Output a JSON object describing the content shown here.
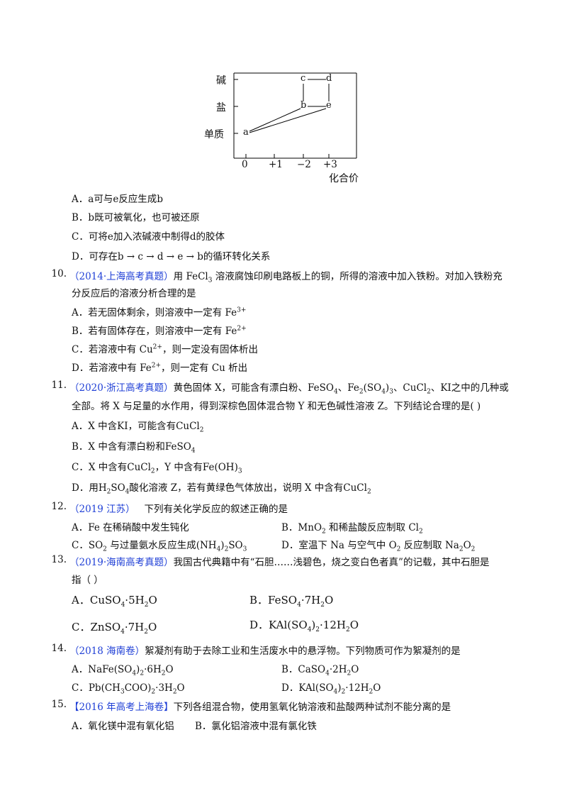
{
  "diagram": {
    "y_labels": [
      "碱",
      "盐",
      "单质"
    ],
    "x_ticks": [
      "0",
      "+1",
      "−2",
      "+3"
    ],
    "x_axis_title": "化合价",
    "nodes": [
      "c",
      "d",
      "b",
      "e",
      "a"
    ]
  },
  "q9": {
    "A": {
      "letter": "A．",
      "t1": "a",
      "t2": "可与",
      "t3": "e",
      "t4": "反应生成",
      "t5": "b"
    },
    "B": {
      "letter": "B．",
      "t1": "b",
      "t2": "既可被氧化，也可被还原"
    },
    "C": {
      "letter": "C．",
      "t1": "可将",
      "t2": "e",
      "t3": "加入浓碱液中制得",
      "t4": "d",
      "t5": "的胶体"
    },
    "D": {
      "letter": "D．",
      "t1": "可存在",
      "t2": "b → c → d → e → b",
      "t3": "的循环转化关系"
    }
  },
  "q10": {
    "num": "10.",
    "source": "（2014·上海高考真题）",
    "stem1": "用 FeCl",
    "stem1_sub": "3",
    "stem1_rest": " 溶液腐蚀印刷电路板上的铜，所得的溶液中加入铁粉。对加入铁粉充",
    "stem2": "分反应后的溶液分析合理的是",
    "A": {
      "letter": "A．",
      "text": "若无固体剩余，则溶液中一定有 Fe",
      "sup": "3+"
    },
    "B": {
      "letter": "B．",
      "text": "若有固体存在，则溶液中一定有 Fe",
      "sup": "2+"
    },
    "C": {
      "letter": "C．",
      "text": "若溶液中有 Cu",
      "sup": "2+",
      "rest": "，则一定没有固体析出"
    },
    "D": {
      "letter": "D．",
      "text": "若溶液中有 Fe",
      "sup": "2+",
      "rest": "，则一定有 Cu 析出"
    }
  },
  "q11": {
    "num": "11.",
    "source": "（2020·浙江高考真题）",
    "stem1": "黄色固体 X，可能含有漂白粉、FeSO",
    "stem1b": "、Fe",
    "stem1c": "(SO",
    "stem1d": ")",
    "stem1e": "、CuCl",
    "stem1f": "、KI之中的几种或",
    "stem2": "全部。将 X 与足量的水作用，得到深棕色固体混合物 Y 和无色碱性溶液 Z。下列结论合理的是(      )",
    "A": {
      "letter": "A．",
      "text": "X 中含KI，可能含有CuCl",
      "sub": "2"
    },
    "B": {
      "letter": "B．",
      "text": "X 中含有漂白粉和FeSO",
      "sub": "4"
    },
    "C": {
      "letter": "C．",
      "text": "X 中含有CuCl",
      "sub": "2",
      "rest": "，Y 中含有Fe(OH)",
      "sub2": "3"
    },
    "D": {
      "letter": "D．",
      "pre": "用H",
      "sub1": "2",
      "mid": "SO",
      "sub2": "4",
      "text": "酸化溶液 Z，若有黄绿色气体放出，说明 X 中含有CuCl",
      "sub3": "2"
    }
  },
  "q12": {
    "num": "12.",
    "source": "（2019 江苏）",
    "stem": "下列有关化学反应的叙述正确的是",
    "A": {
      "letter": "A．",
      "text": "Fe 在稀硝酸中发生钝化"
    },
    "B": {
      "letter": "B．",
      "text": "MnO",
      "sub": "2",
      "rest": " 和稀盐酸反应制取 Cl",
      "sub2": "2"
    },
    "C": {
      "letter": "C．",
      "text": "SO",
      "sub": "2",
      "rest": " 与过量氨水反应生成(NH",
      "sub2": "4",
      "rest2": ")",
      "sub3": "2",
      "rest3": "SO",
      "sub4": "3"
    },
    "D": {
      "letter": "D．",
      "text": "室温下 Na 与空气中 O",
      "sub": "2",
      "rest": " 反应制取 Na",
      "sub2": "2",
      "rest2": "O",
      "sub3": "2"
    }
  },
  "q13": {
    "num": "13.",
    "source": "（2019·海南高考真题）",
    "stem1": "我国古代典籍中有“石胆……浅碧色，烧之变白色者真”的记载，其中石胆是",
    "stem2": "指（     ）",
    "A": {
      "letter": "A．",
      "text": "CuSO",
      "sub": "4",
      "rest": "·5H",
      "sub2": "2",
      "rest2": "O"
    },
    "B": {
      "letter": "B．",
      "text": "FeSO",
      "sub": "4",
      "rest": "·7H",
      "sub2": "2",
      "rest2": "O"
    },
    "C": {
      "letter": "C．",
      "text": "ZnSO",
      "sub": "4",
      "rest": "·7H",
      "sub2": "2",
      "rest2": "O"
    },
    "D": {
      "letter": "D．",
      "text": "KAl(SO",
      "sub": "4",
      "rest": ")",
      "sub2": "2",
      "rest2": "·12H",
      "sub3": "2",
      "rest3": "O"
    }
  },
  "q14": {
    "num": "14.",
    "source": "（2018 海南卷）",
    "stem": "絮凝剂有助于去除工业和生活废水中的悬浮物。下列物质可作为絮凝剂的是",
    "A": {
      "letter": "A．",
      "text": "NaFe(SO",
      "sub": "4",
      "rest": ")",
      "sub2": "2",
      "rest2": "·6H",
      "sub3": "2",
      "rest3": "O"
    },
    "B": {
      "letter": "B．",
      "text": "CaSO",
      "sub": "4",
      "rest": "·2H",
      "sub2": "2",
      "rest2": "O"
    },
    "C": {
      "letter": "C．",
      "text": "Pb(CH",
      "sub": "3",
      "rest": "COO)",
      "sub2": "2",
      "rest2": "·3H",
      "sub3": "2",
      "rest3": "O"
    },
    "D": {
      "letter": "D．",
      "text": "KAl(SO",
      "sub": "4",
      "rest": ")",
      "sub2": "2",
      "rest2": "·12H",
      "sub3": "2",
      "rest3": "O"
    }
  },
  "q15": {
    "num": "15.",
    "source": "【2016 年高考上海卷】",
    "stem": "下列各组混合物，使用氢氧化钠溶液和盐酸两种试剂不能分离的是",
    "A": {
      "letter": "A．",
      "text": "氧化镁中混有氧化铝"
    },
    "B": {
      "letter": "B．",
      "text": "氯化铝溶液中混有氯化铁"
    }
  }
}
